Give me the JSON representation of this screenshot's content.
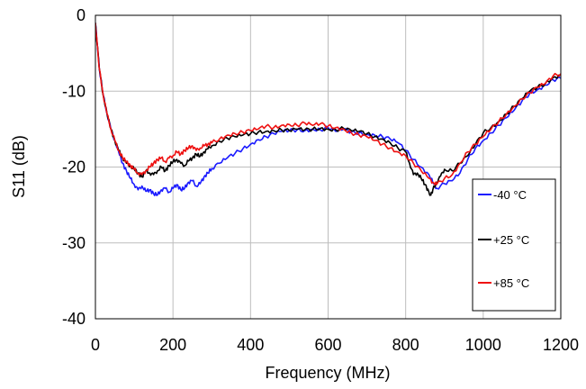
{
  "chart_data": {
    "type": "line",
    "title": "",
    "xlabel": "Frequency (MHz)",
    "ylabel": "S11 (dB)",
    "xlim": [
      0,
      1200
    ],
    "ylim": [
      -40,
      0
    ],
    "xticks": [
      0,
      200,
      400,
      600,
      800,
      1000,
      1200
    ],
    "yticks": [
      0,
      -10,
      -20,
      -30,
      -40
    ],
    "grid": true,
    "legend_position": "bottom-right",
    "series": [
      {
        "name": "-40 °C",
        "color": "#1a1aff",
        "x": [
          0,
          5,
          10,
          20,
          30,
          40,
          50,
          60,
          70,
          80,
          90,
          100,
          110,
          120,
          130,
          140,
          150,
          160,
          170,
          180,
          190,
          200,
          210,
          220,
          230,
          240,
          250,
          260,
          270,
          280,
          290,
          300,
          320,
          340,
          360,
          380,
          400,
          420,
          440,
          460,
          480,
          500,
          520,
          540,
          560,
          580,
          600,
          620,
          640,
          660,
          680,
          700,
          720,
          740,
          760,
          780,
          800,
          820,
          840,
          860,
          870,
          880,
          900,
          920,
          940,
          960,
          980,
          1000,
          1020,
          1040,
          1060,
          1080,
          1100,
          1120,
          1140,
          1160,
          1180,
          1200
        ],
        "y": [
          -1.0,
          -4.0,
          -7.0,
          -10.5,
          -13.0,
          -15.0,
          -16.5,
          -18.0,
          -19.5,
          -20.5,
          -21.5,
          -22.3,
          -23.0,
          -22.5,
          -23.2,
          -23.0,
          -23.5,
          -23.7,
          -23.0,
          -22.8,
          -23.3,
          -22.8,
          -22.3,
          -23.0,
          -22.8,
          -22.0,
          -21.8,
          -22.5,
          -22.2,
          -21.3,
          -20.8,
          -20.2,
          -19.5,
          -18.8,
          -18.2,
          -17.6,
          -17.0,
          -16.4,
          -16.0,
          -15.6,
          -15.3,
          -15.2,
          -15.1,
          -15.2,
          -15.0,
          -15.1,
          -14.8,
          -15.3,
          -15.0,
          -15.4,
          -15.5,
          -15.7,
          -15.8,
          -16.0,
          -16.3,
          -16.8,
          -17.8,
          -19.0,
          -20.0,
          -21.0,
          -22.0,
          -22.8,
          -22.2,
          -21.8,
          -20.8,
          -19.0,
          -17.5,
          -16.5,
          -15.5,
          -14.5,
          -13.5,
          -12.5,
          -11.3,
          -10.3,
          -9.8,
          -9.2,
          -8.5,
          -8.3
        ]
      },
      {
        "name": "+25 °C",
        "color": "#000000",
        "x": [
          0,
          5,
          10,
          20,
          30,
          40,
          50,
          60,
          70,
          80,
          90,
          100,
          110,
          120,
          130,
          140,
          150,
          160,
          170,
          180,
          190,
          200,
          210,
          220,
          230,
          240,
          250,
          260,
          270,
          280,
          290,
          300,
          320,
          340,
          360,
          380,
          400,
          420,
          440,
          460,
          480,
          500,
          520,
          540,
          560,
          580,
          600,
          620,
          640,
          660,
          680,
          700,
          720,
          740,
          760,
          780,
          800,
          810,
          820,
          830,
          840,
          850,
          860,
          865,
          870,
          880,
          890,
          900,
          920,
          940,
          960,
          980,
          1000,
          1020,
          1040,
          1060,
          1080,
          1100,
          1120,
          1140,
          1160,
          1180,
          1200
        ],
        "y": [
          -1.0,
          -4.0,
          -7.0,
          -10.5,
          -13.0,
          -15.0,
          -16.5,
          -17.8,
          -18.8,
          -19.5,
          -19.8,
          -20.3,
          -20.8,
          -21.3,
          -20.5,
          -20.8,
          -21.0,
          -20.5,
          -20.0,
          -20.5,
          -19.8,
          -19.3,
          -19.0,
          -19.5,
          -19.8,
          -19.2,
          -18.8,
          -18.3,
          -18.6,
          -18.0,
          -17.6,
          -17.2,
          -16.6,
          -16.2,
          -16.0,
          -15.8,
          -15.6,
          -15.4,
          -15.3,
          -15.2,
          -15.1,
          -15.2,
          -15.0,
          -15.1,
          -15.0,
          -14.9,
          -15.0,
          -15.1,
          -14.9,
          -15.2,
          -15.3,
          -15.6,
          -16.0,
          -16.3,
          -16.8,
          -17.5,
          -18.0,
          -19.5,
          -21.0,
          -20.8,
          -21.5,
          -22.3,
          -23.3,
          -23.7,
          -23.0,
          -22.0,
          -21.2,
          -20.3,
          -20.5,
          -19.5,
          -18.5,
          -17.0,
          -15.5,
          -14.8,
          -14.0,
          -13.0,
          -12.0,
          -11.0,
          -10.0,
          -9.5,
          -9.0,
          -8.2,
          -7.9
        ]
      },
      {
        "name": "+85 °C",
        "color": "#ee1111",
        "x": [
          0,
          5,
          10,
          20,
          30,
          40,
          50,
          60,
          70,
          80,
          90,
          100,
          110,
          120,
          130,
          140,
          150,
          160,
          170,
          180,
          190,
          200,
          210,
          220,
          230,
          240,
          250,
          260,
          270,
          280,
          290,
          300,
          320,
          340,
          360,
          380,
          400,
          420,
          440,
          460,
          480,
          500,
          520,
          540,
          560,
          580,
          600,
          620,
          640,
          660,
          680,
          700,
          720,
          740,
          760,
          780,
          800,
          820,
          840,
          860,
          870,
          880,
          900,
          920,
          940,
          960,
          980,
          1000,
          1020,
          1040,
          1060,
          1080,
          1100,
          1120,
          1140,
          1160,
          1180,
          1200
        ],
        "y": [
          -1.0,
          -4.0,
          -7.0,
          -10.5,
          -13.0,
          -15.0,
          -16.5,
          -17.8,
          -18.8,
          -19.3,
          -19.8,
          -20.3,
          -20.8,
          -21.0,
          -20.5,
          -20.0,
          -19.5,
          -19.0,
          -18.8,
          -19.3,
          -18.8,
          -18.5,
          -18.0,
          -18.3,
          -17.8,
          -17.5,
          -17.2,
          -17.8,
          -17.5,
          -17.2,
          -17.0,
          -16.8,
          -16.3,
          -15.8,
          -15.6,
          -15.4,
          -15.2,
          -15.0,
          -14.6,
          -14.8,
          -14.5,
          -14.4,
          -14.5,
          -14.2,
          -14.5,
          -14.3,
          -14.6,
          -14.8,
          -15.0,
          -15.5,
          -15.8,
          -16.0,
          -16.5,
          -17.0,
          -17.5,
          -18.0,
          -18.5,
          -19.5,
          -20.5,
          -21.5,
          -22.0,
          -22.3,
          -21.5,
          -21.0,
          -19.5,
          -18.0,
          -17.0,
          -16.0,
          -15.0,
          -14.0,
          -13.0,
          -12.0,
          -11.0,
          -10.2,
          -9.5,
          -9.0,
          -8.0,
          -7.7
        ]
      }
    ]
  }
}
